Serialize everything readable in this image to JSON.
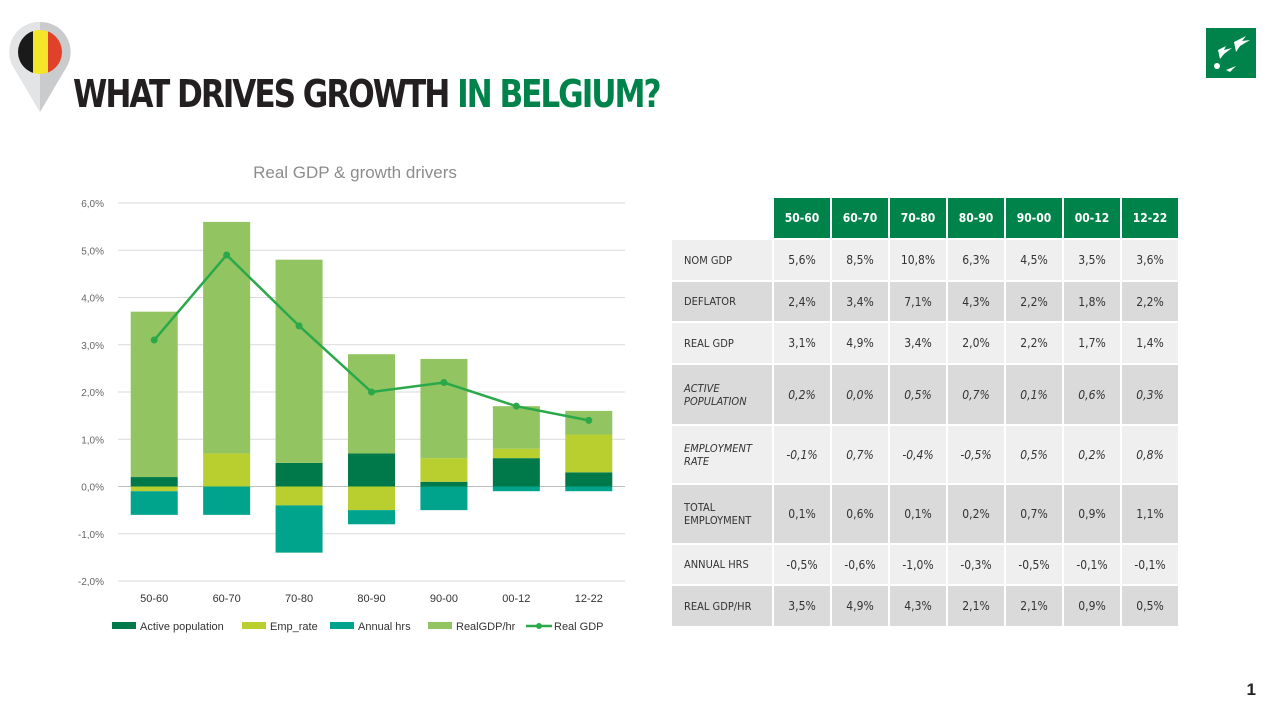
{
  "header": {
    "title_dark": "WHAT DRIVES GROWTH",
    "title_green": "IN BELGIUM?",
    "page_number": "1"
  },
  "colors": {
    "active": "#00794a",
    "emp": "#b9cf2f",
    "hrs": "#00a38c",
    "gdphr": "#93c462",
    "line": "#2aa84a",
    "brand": "#00834a"
  },
  "chart_data": {
    "type": "bar",
    "title": "Real GDP & growth drivers",
    "categories": [
      "50-60",
      "60-70",
      "70-80",
      "80-90",
      "90-00",
      "00-12",
      "12-22"
    ],
    "ylim": [
      -2,
      6
    ],
    "yticks": [
      "6,0%",
      "5,0%",
      "4,0%",
      "3,0%",
      "2,0%",
      "1,0%",
      "0,0%",
      "-1,0%",
      "-2,0%"
    ],
    "series": [
      {
        "name": "Active population",
        "type": "stacked-bar",
        "values": [
          0.2,
          0.0,
          0.5,
          0.7,
          0.1,
          0.6,
          0.3
        ]
      },
      {
        "name": "Emp_rate",
        "type": "stacked-bar",
        "values": [
          -0.1,
          0.7,
          -0.4,
          -0.5,
          0.5,
          0.2,
          0.8
        ]
      },
      {
        "name": "Annual hrs",
        "type": "stacked-bar",
        "values": [
          -0.5,
          -0.6,
          -1.0,
          -0.3,
          -0.5,
          -0.1,
          -0.1
        ]
      },
      {
        "name": "RealGDP/hr",
        "type": "stacked-bar",
        "values": [
          3.5,
          4.9,
          4.3,
          2.1,
          2.1,
          0.9,
          0.5
        ]
      },
      {
        "name": "Real GDP",
        "type": "line",
        "values": [
          3.1,
          4.9,
          3.4,
          2.0,
          2.2,
          1.7,
          1.4
        ]
      }
    ],
    "legend": "bottom"
  },
  "table": {
    "columns": [
      "50-60",
      "60-70",
      "70-80",
      "80-90",
      "90-00",
      "00-12",
      "12-22"
    ],
    "rows": [
      {
        "label": "NOM GDP",
        "values": [
          "5,6%",
          "8,5%",
          "10,8%",
          "6,3%",
          "4,5%",
          "3,5%",
          "3,6%"
        ]
      },
      {
        "label": "DEFLATOR",
        "values": [
          "2,4%",
          "3,4%",
          "7,1%",
          "4,3%",
          "2,2%",
          "1,8%",
          "2,2%"
        ]
      },
      {
        "label": "REAL GDP",
        "values": [
          "3,1%",
          "4,9%",
          "3,4%",
          "2,0%",
          "2,2%",
          "1,7%",
          "1,4%"
        ]
      },
      {
        "label": "ACTIVE POPULATION",
        "values": [
          "0,2%",
          "0,0%",
          "0,5%",
          "0,7%",
          "0,1%",
          "0,6%",
          "0,3%"
        ]
      },
      {
        "label": "EMPLOYMENT RATE",
        "values": [
          "-0,1%",
          "0,7%",
          "-0,4%",
          "-0,5%",
          "0,5%",
          "0,2%",
          "0,8%"
        ]
      },
      {
        "label": "TOTAL EMPLOYMENT",
        "values": [
          "0,1%",
          "0,6%",
          "0,1%",
          "0,2%",
          "0,7%",
          "0,9%",
          "1,1%"
        ]
      },
      {
        "label": "ANNUAL HRS",
        "values": [
          "-0,5%",
          "-0,6%",
          "-1,0%",
          "-0,3%",
          "-0,5%",
          "-0,1%",
          "-0,1%"
        ]
      },
      {
        "label": "REAL GDP/HR",
        "values": [
          "3,5%",
          "4,9%",
          "4,3%",
          "2,1%",
          "2,1%",
          "0,9%",
          "0,5%"
        ]
      }
    ]
  }
}
